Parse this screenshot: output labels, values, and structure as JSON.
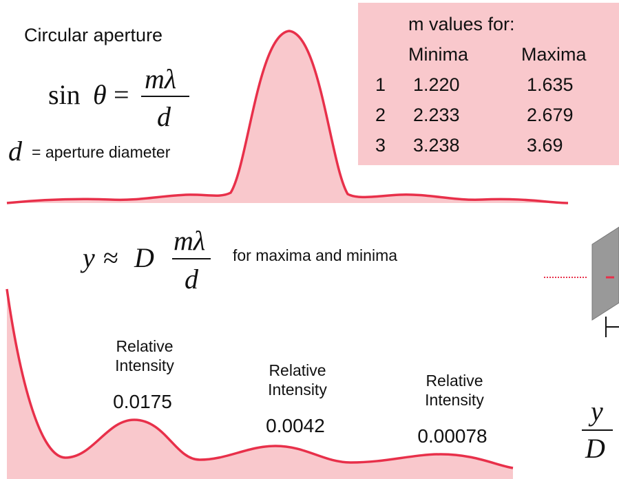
{
  "title": "Circular aperture",
  "formula1": {
    "fn": "sin",
    "var": "θ",
    "eq": "=",
    "num": "mλ",
    "den": "d"
  },
  "aperture_note": {
    "symbol": "d",
    "text": "= aperture diameter"
  },
  "table": {
    "caption": "m values for:",
    "headers": [
      "Minima",
      "Maxima"
    ],
    "rows": [
      [
        "1",
        "1.220",
        "1.635"
      ],
      [
        "2",
        "2.233",
        "2.679"
      ],
      [
        "3",
        "3.238",
        "3.69"
      ]
    ]
  },
  "formula2": {
    "lhs": "y",
    "approx": "≈",
    "factor": "D",
    "num": "mλ",
    "den": "d",
    "note": "for maxima and minima"
  },
  "peaks": [
    {
      "label": "Relative Intensity",
      "value": "0.0175"
    },
    {
      "label": "Relative Intensity",
      "value": "0.0042"
    },
    {
      "label": "Relative Intensity",
      "value": "0.00078"
    }
  ],
  "side": {
    "num": "y",
    "den": "D"
  }
}
